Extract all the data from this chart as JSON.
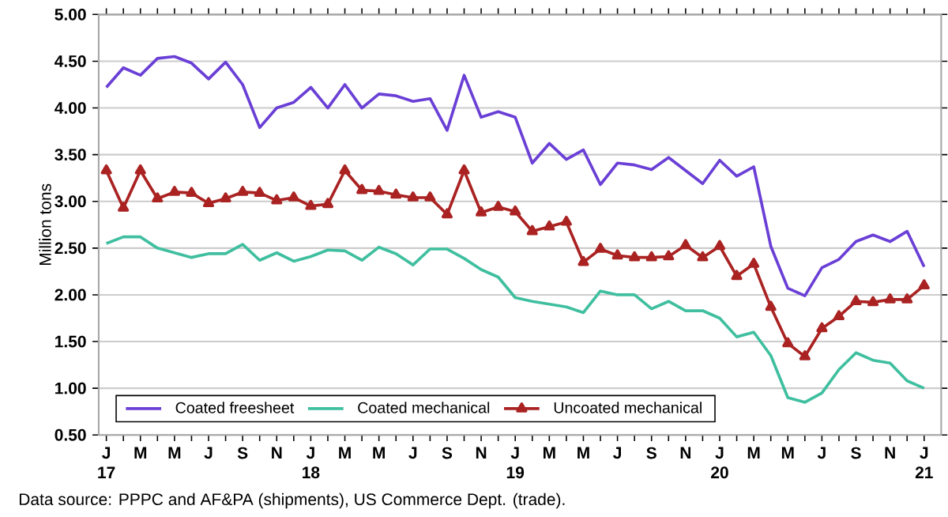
{
  "chart_data": {
    "type": "line",
    "ylabel": "Million tons",
    "categories": [
      "J 17",
      null,
      "M",
      null,
      "M",
      null,
      "J",
      null,
      "S",
      null,
      "N",
      null,
      "J 18",
      null,
      "M",
      null,
      "M",
      null,
      "J",
      null,
      "S",
      null,
      "N",
      null,
      "J 19",
      null,
      "M",
      null,
      "M",
      null,
      "J",
      null,
      "S",
      null,
      "N",
      null,
      "J 20",
      null,
      "M",
      null,
      "M",
      null,
      "J",
      null,
      "S",
      null,
      "N",
      null,
      "J 21"
    ],
    "series": [
      {
        "name": "Coated freesheet",
        "color": "#6a3fd6",
        "marker": "none",
        "values": [
          4.22,
          4.43,
          4.35,
          4.53,
          4.55,
          4.48,
          4.31,
          4.49,
          4.25,
          3.79,
          4.0,
          4.06,
          4.22,
          4.0,
          4.25,
          4.0,
          4.15,
          4.13,
          4.07,
          4.1,
          3.76,
          4.35,
          3.9,
          3.96,
          3.9,
          3.41,
          3.62,
          3.45,
          3.55,
          3.18,
          3.41,
          3.39,
          3.34,
          3.47,
          3.33,
          3.19,
          3.44,
          3.27,
          3.37,
          2.52,
          2.07,
          1.99,
          2.29,
          2.38,
          2.57,
          2.64,
          2.57,
          2.68,
          2.3
        ]
      },
      {
        "name": "Coated mechanical",
        "color": "#3fbf9f",
        "marker": "none",
        "values": [
          2.55,
          2.62,
          2.62,
          2.5,
          2.45,
          2.4,
          2.44,
          2.44,
          2.54,
          2.37,
          2.45,
          2.36,
          2.41,
          2.48,
          2.47,
          2.37,
          2.51,
          2.44,
          2.32,
          2.49,
          2.49,
          2.39,
          2.27,
          2.19,
          1.97,
          1.93,
          1.9,
          1.87,
          1.81,
          2.04,
          2.0,
          2.0,
          1.85,
          1.93,
          1.83,
          1.83,
          1.75,
          1.55,
          1.6,
          1.35,
          0.9,
          0.85,
          0.95,
          1.2,
          1.38,
          1.3,
          1.27,
          1.08,
          1.0
        ]
      },
      {
        "name": "Uncoated mechanical",
        "color": "#aa2222",
        "marker": "triangle",
        "values": [
          3.33,
          2.93,
          3.33,
          3.03,
          3.1,
          3.09,
          2.98,
          3.03,
          3.1,
          3.09,
          3.01,
          3.04,
          2.95,
          2.97,
          3.33,
          3.12,
          3.11,
          3.07,
          3.04,
          3.04,
          2.86,
          3.33,
          2.88,
          2.94,
          2.89,
          2.68,
          2.73,
          2.78,
          2.35,
          2.49,
          2.42,
          2.4,
          2.4,
          2.41,
          2.53,
          2.4,
          2.52,
          2.2,
          2.33,
          1.87,
          1.48,
          1.34,
          1.64,
          1.77,
          1.93,
          1.92,
          1.95,
          1.95,
          2.1
        ]
      }
    ],
    "ylim": [
      0.5,
      5.0
    ],
    "yticks": [
      {
        "value": 0.5,
        "label": "0.50"
      },
      {
        "value": 1.0,
        "label": "1.00"
      },
      {
        "value": 1.5,
        "label": "1.50"
      },
      {
        "value": 2.0,
        "label": "2.00"
      },
      {
        "value": 2.5,
        "label": "2.50"
      },
      {
        "value": 3.0,
        "label": "3.00"
      },
      {
        "value": 3.5,
        "label": "3.50"
      },
      {
        "value": 4.0,
        "label": "4.00"
      },
      {
        "value": 4.5,
        "label": "4.50"
      },
      {
        "value": 5.0,
        "label": "5.00"
      }
    ],
    "grid": "y",
    "legend": "bottom",
    "annotations": [
      "Data source: PPPC and AF&PA (shipments), US Commerce Dept. (trade)."
    ]
  }
}
